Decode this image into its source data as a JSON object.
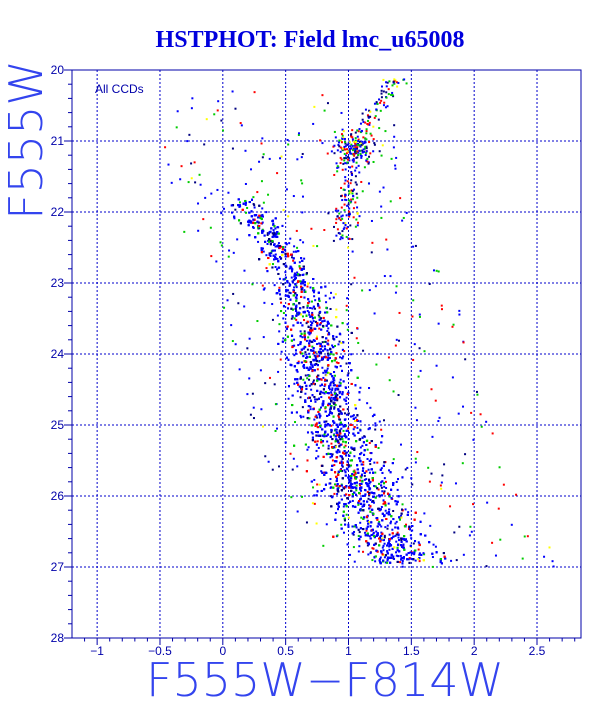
{
  "colors": {
    "background": "#ffffff",
    "frame": "#0000aa",
    "grid": "#0000cc",
    "title": "#0000dd",
    "points_main": "#0000ff",
    "points_alt": [
      "#ff0000",
      "#00cc00",
      "#000080",
      "#ffff00"
    ]
  },
  "chart_data": {
    "type": "scatter",
    "title": "HSTPHOT: Field lmc_u65008",
    "xlabel": "F555W−F814W",
    "ylabel": "F555W",
    "annotation": "All CCDs",
    "xlim": [
      -1.2,
      2.85
    ],
    "ylim": [
      28,
      20
    ],
    "y_inverted": true,
    "grid": true,
    "x_ticks": [
      -1,
      -0.5,
      0,
      0.5,
      1,
      1.5,
      2,
      2.5
    ],
    "x_tick_labels": [
      "−1",
      "−0.5",
      "0",
      "0.5",
      "1",
      "1.5",
      "2",
      "2.5"
    ],
    "y_ticks": [
      20,
      21,
      22,
      23,
      24,
      25,
      26,
      27,
      28
    ],
    "y_tick_labels": [
      "20",
      "21",
      "22",
      "23",
      "24",
      "25",
      "26",
      "27",
      "28"
    ],
    "series_note": "colour-magnitude diagram; points coloured by CCD (blue, red, green, dark blue, yellow)",
    "series": [
      {
        "color": "#0000ff",
        "description": "dense main sequence / lower red-giant branch",
        "ridge": [
          {
            "y": 21.9,
            "x": 0.2
          },
          {
            "y": 22.5,
            "x": 0.45
          },
          {
            "y": 23.0,
            "x": 0.58
          },
          {
            "y": 23.5,
            "x": 0.68
          },
          {
            "y": 24.0,
            "x": 0.75
          },
          {
            "y": 24.5,
            "x": 0.82
          },
          {
            "y": 25.0,
            "x": 0.9
          },
          {
            "y": 25.5,
            "x": 1.0
          },
          {
            "y": 26.0,
            "x": 1.12
          },
          {
            "y": 26.5,
            "x": 1.28
          },
          {
            "y": 26.9,
            "x": 1.45
          }
        ],
        "giant_branch_clump": {
          "x": 1.05,
          "y": 21.1
        },
        "red_giant_branch": [
          {
            "y": 20.1,
            "x": 1.4
          },
          {
            "y": 20.6,
            "x": 1.2
          },
          {
            "y": 21.1,
            "x": 1.05
          },
          {
            "y": 21.6,
            "x": 1.0
          },
          {
            "y": 22.2,
            "x": 0.97
          }
        ]
      }
    ]
  }
}
